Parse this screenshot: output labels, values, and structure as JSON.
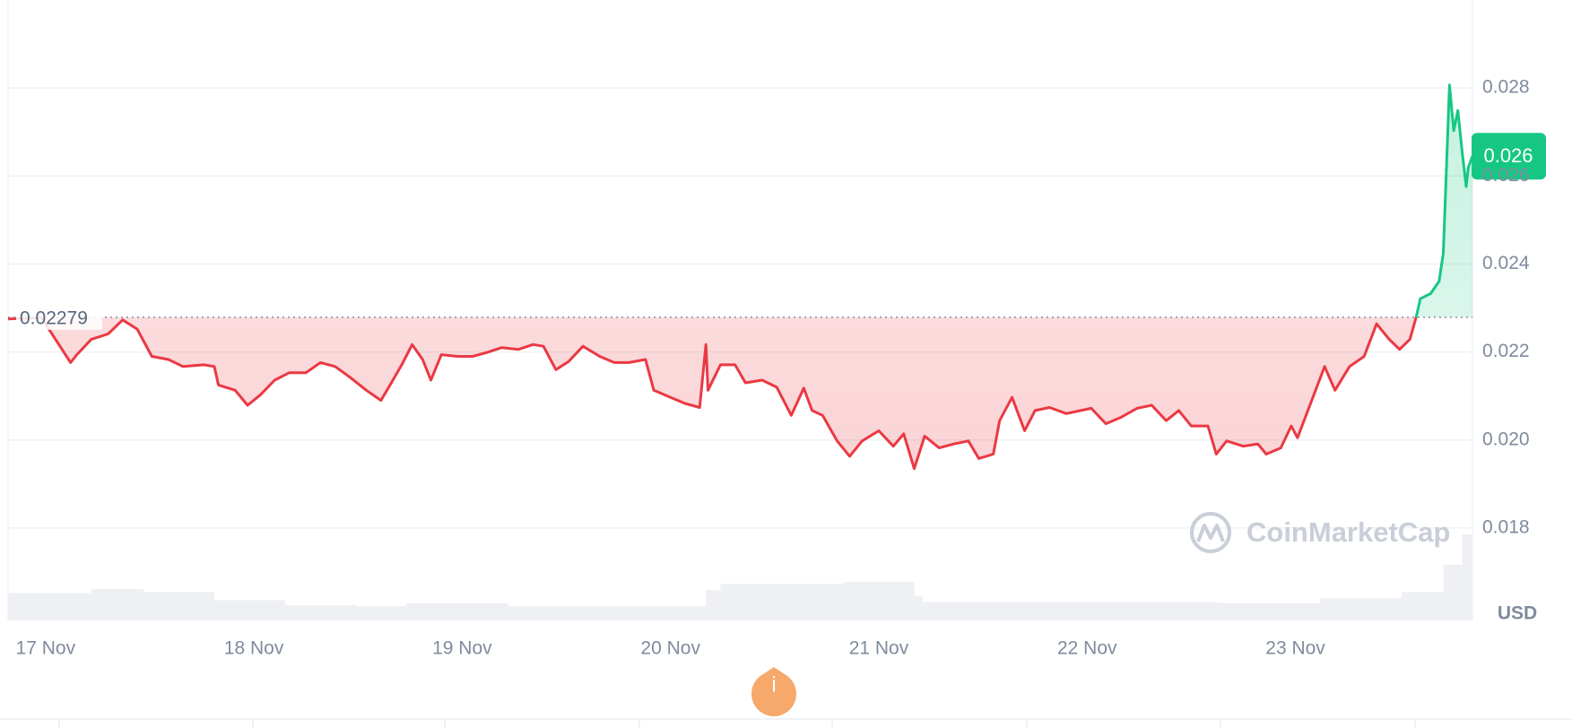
{
  "chart_data": {
    "type": "line",
    "x": [
      16.82,
      16.98,
      17.12,
      17.15,
      17.22,
      17.3,
      17.37,
      17.44,
      17.51,
      17.59,
      17.66,
      17.76,
      17.81,
      17.83,
      17.91,
      17.97,
      18.03,
      18.1,
      18.17,
      18.25,
      18.32,
      18.39,
      18.46,
      18.54,
      18.61,
      18.66,
      18.71,
      18.76,
      18.81,
      18.85,
      18.9,
      18.98,
      19.05,
      19.12,
      19.19,
      19.27,
      19.34,
      19.39,
      19.45,
      19.51,
      19.58,
      19.66,
      19.73,
      19.8,
      19.88,
      19.92,
      20.0,
      20.07,
      20.14,
      20.17,
      20.18,
      20.24,
      20.31,
      20.36,
      20.44,
      20.51,
      20.58,
      20.64,
      20.68,
      20.73,
      20.8,
      20.86,
      20.92,
      21.0,
      21.07,
      21.12,
      21.17,
      21.22,
      21.29,
      21.36,
      21.43,
      21.48,
      21.55,
      21.58,
      21.64,
      21.7,
      21.75,
      21.82,
      21.9,
      21.97,
      22.02,
      22.09,
      22.16,
      22.24,
      22.31,
      22.38,
      22.44,
      22.5,
      22.58,
      22.62,
      22.67,
      22.75,
      22.82,
      22.86,
      22.93,
      22.98,
      23.01,
      23.06,
      23.14,
      23.19,
      23.26,
      23.33,
      23.39,
      23.45,
      23.5,
      23.55,
      23.58,
      23.6,
      23.65,
      23.69,
      23.71,
      23.74,
      23.76,
      23.78,
      23.8,
      23.82,
      23.83,
      23.85
    ],
    "values": [
      0.02275,
      0.02278,
      0.02176,
      0.02194,
      0.02229,
      0.02241,
      0.02273,
      0.02252,
      0.0219,
      0.02183,
      0.02167,
      0.02171,
      0.02167,
      0.02125,
      0.02113,
      0.02079,
      0.02102,
      0.02136,
      0.02153,
      0.02153,
      0.02176,
      0.02167,
      0.02143,
      0.02113,
      0.0209,
      0.0213,
      0.02171,
      0.02217,
      0.02183,
      0.02136,
      0.02194,
      0.0219,
      0.0219,
      0.02199,
      0.0221,
      0.02206,
      0.02217,
      0.02213,
      0.0216,
      0.02178,
      0.02213,
      0.0219,
      0.02176,
      0.02176,
      0.02183,
      0.02113,
      0.02097,
      0.02083,
      0.02074,
      0.02217,
      0.02113,
      0.02171,
      0.02171,
      0.0213,
      0.02136,
      0.0212,
      0.02056,
      0.02118,
      0.02067,
      0.02056,
      0.01998,
      0.01963,
      0.01998,
      0.02021,
      0.01986,
      0.02014,
      0.01935,
      0.02009,
      0.01982,
      0.01991,
      0.01998,
      0.01958,
      0.01968,
      0.02044,
      0.02097,
      0.02021,
      0.02067,
      0.02074,
      0.0206,
      0.02067,
      0.02072,
      0.02037,
      0.02051,
      0.02072,
      0.02079,
      0.02044,
      0.02067,
      0.02032,
      0.02032,
      0.01968,
      0.01998,
      0.01986,
      0.01991,
      0.01968,
      0.01982,
      0.02032,
      0.02005,
      0.02067,
      0.02167,
      0.02113,
      0.02167,
      0.0219,
      0.02264,
      0.02229,
      0.02206,
      0.02229,
      0.0228,
      0.02321,
      0.02333,
      0.02361,
      0.02425,
      0.02807,
      0.02703,
      0.02749,
      0.02657,
      0.02576,
      0.0262,
      0.02645
    ],
    "color_below": "#ea3943",
    "color_above": "#16c784",
    "reference": 0.02279,
    "price_tag": 0.026,
    "xlim": [
      16.82,
      23.85
    ],
    "xticks": [
      {
        "value": 17,
        "label": "17 Nov"
      },
      {
        "value": 18,
        "label": "18 Nov"
      },
      {
        "value": 19,
        "label": "19 Nov"
      },
      {
        "value": 20,
        "label": "20 Nov"
      },
      {
        "value": 21,
        "label": "21 Nov"
      },
      {
        "value": 22,
        "label": "22 Nov"
      },
      {
        "value": 23,
        "label": "23 Nov"
      }
    ],
    "ylim": [
      0.0159,
      0.03
    ],
    "yticks": [
      0.018,
      {
        "value": 0.02,
        "label": "0.020"
      },
      0.022,
      0.024,
      0.026,
      0.028
    ],
    "grid": true,
    "currency": "USD",
    "watermark": "CoinMarketCap",
    "info_icon": "i",
    "volume": {
      "bins": [
        16.82,
        17.22,
        17.47,
        17.81,
        18.15,
        18.49,
        18.73,
        19.22,
        20.17,
        20.24,
        20.83,
        21.17,
        21.21,
        22.63,
        23.12,
        23.51,
        23.71,
        23.8,
        23.85
      ],
      "values": [
        27,
        31,
        28,
        20,
        15,
        14,
        17,
        14,
        30,
        36,
        38,
        24,
        18,
        17,
        22,
        28,
        55,
        85
      ],
      "ylim": [
        0,
        100
      ],
      "color": "#eef0f4"
    }
  }
}
